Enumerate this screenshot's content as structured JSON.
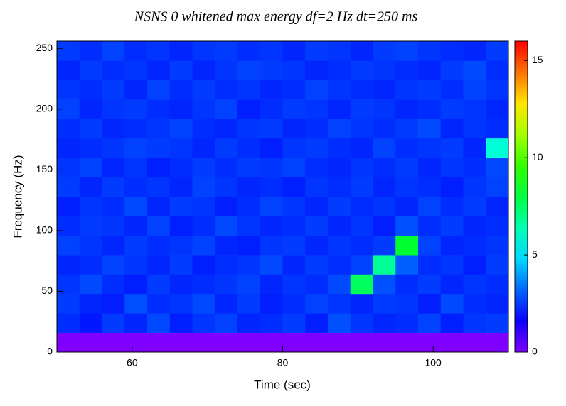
{
  "chart_data": {
    "type": "heatmap",
    "title": "NSNS 0 whitened max energy df=2 Hz dt=250 ms",
    "x_label": "Time (sec)",
    "y_label": "Frequency (Hz)",
    "x_bins": [
      50,
      53,
      56,
      59,
      62,
      65,
      68,
      71,
      74,
      77,
      80,
      83,
      86,
      89,
      92,
      95,
      98,
      101,
      104,
      107,
      110
    ],
    "y_bins": [
      0,
      16,
      32,
      48,
      64,
      80,
      96,
      112,
      128,
      144,
      160,
      176,
      192,
      208,
      224,
      240,
      256
    ],
    "values": [
      [
        0,
        0,
        0,
        0,
        0,
        0,
        0,
        0,
        0,
        0,
        0,
        0,
        0,
        0,
        0,
        0,
        0,
        0,
        0,
        0
      ],
      [
        2.4,
        2.1,
        2.6,
        2.3,
        2.8,
        2.2,
        2.5,
        2.7,
        2.3,
        2.4,
        2.6,
        2.2,
        2.9,
        2.5,
        2.3,
        2.4,
        2.7,
        2.2,
        2.5,
        2.6
      ],
      [
        2.6,
        2.3,
        2.2,
        2.9,
        2.4,
        2.5,
        2.8,
        2.3,
        2.6,
        2.2,
        2.4,
        2.7,
        2.5,
        2.3,
        2.6,
        2.5,
        2.2,
        2.8,
        2.4,
        2.3
      ],
      [
        2.5,
        2.8,
        2.4,
        2.2,
        2.6,
        2.3,
        2.4,
        2.5,
        2.7,
        2.3,
        2.5,
        2.4,
        2.8,
        7.6,
        2.9,
        2.4,
        2.6,
        2.3,
        2.5,
        2.4
      ],
      [
        2.3,
        2.4,
        2.7,
        2.5,
        2.3,
        2.6,
        2.2,
        2.4,
        2.5,
        2.8,
        2.3,
        2.6,
        2.4,
        2.7,
        6.8,
        3.1,
        2.4,
        2.5,
        2.2,
        2.6
      ],
      [
        2.7,
        2.5,
        2.3,
        2.6,
        2.4,
        2.5,
        2.7,
        2.3,
        2.2,
        2.5,
        2.6,
        2.3,
        2.5,
        2.4,
        2.6,
        8.2,
        2.7,
        2.3,
        2.4,
        2.5
      ],
      [
        2.4,
        2.6,
        2.5,
        2.3,
        2.7,
        2.2,
        2.4,
        2.8,
        2.5,
        2.3,
        2.4,
        2.6,
        2.3,
        2.5,
        2.2,
        2.9,
        2.4,
        2.6,
        2.3,
        2.4
      ],
      [
        2.2,
        2.5,
        2.4,
        2.8,
        2.3,
        2.6,
        2.5,
        2.2,
        2.4,
        2.7,
        2.5,
        2.3,
        2.6,
        2.4,
        2.5,
        2.3,
        2.7,
        2.4,
        2.6,
        2.3
      ],
      [
        2.6,
        2.3,
        2.6,
        2.4,
        2.5,
        2.3,
        2.7,
        2.5,
        2.3,
        2.4,
        2.2,
        2.5,
        2.4,
        2.6,
        2.3,
        2.5,
        2.4,
        2.2,
        2.5,
        2.7
      ],
      [
        2.5,
        2.7,
        2.3,
        2.5,
        2.2,
        2.4,
        2.6,
        2.4,
        2.6,
        2.5,
        2.7,
        2.4,
        2.3,
        2.5,
        2.4,
        2.6,
        2.3,
        2.5,
        2.4,
        2.8
      ],
      [
        2.3,
        2.4,
        2.5,
        2.7,
        2.6,
        2.5,
        2.3,
        2.6,
        2.4,
        2.2,
        2.5,
        2.6,
        2.4,
        2.3,
        2.7,
        2.4,
        2.5,
        2.6,
        2.3,
        5.9
      ],
      [
        2.4,
        2.6,
        2.3,
        2.4,
        2.5,
        2.7,
        2.4,
        2.3,
        2.5,
        2.6,
        2.3,
        2.4,
        2.7,
        2.5,
        2.4,
        2.6,
        2.8,
        2.3,
        2.5,
        2.4
      ],
      [
        2.7,
        2.3,
        2.5,
        2.6,
        2.4,
        2.3,
        2.5,
        2.7,
        2.2,
        2.4,
        2.6,
        2.5,
        2.3,
        2.6,
        2.5,
        2.3,
        2.4,
        2.6,
        2.5,
        2.3
      ],
      [
        2.5,
        2.4,
        2.6,
        2.3,
        2.7,
        2.4,
        2.6,
        2.4,
        2.5,
        2.3,
        2.4,
        2.7,
        2.5,
        2.4,
        2.3,
        2.5,
        2.6,
        2.4,
        2.7,
        2.5
      ],
      [
        2.3,
        2.6,
        2.4,
        2.5,
        2.3,
        2.6,
        2.3,
        2.5,
        2.7,
        2.6,
        2.5,
        2.3,
        2.4,
        2.6,
        2.5,
        2.4,
        2.3,
        2.6,
        2.8,
        2.4
      ],
      [
        2.6,
        2.4,
        2.7,
        2.4,
        2.5,
        2.3,
        2.5,
        2.6,
        2.4,
        2.5,
        2.3,
        2.6,
        2.5,
        2.3,
        2.6,
        2.7,
        2.5,
        2.4,
        2.3,
        2.6
      ]
    ],
    "xlim": [
      50,
      110
    ],
    "ylim": [
      0,
      256
    ],
    "xticks": [
      60,
      80,
      100
    ],
    "yticks": [
      0,
      50,
      100,
      150,
      200,
      250
    ],
    "zlim": [
      0,
      16
    ],
    "zticks": [
      0,
      5,
      10,
      15
    ]
  }
}
